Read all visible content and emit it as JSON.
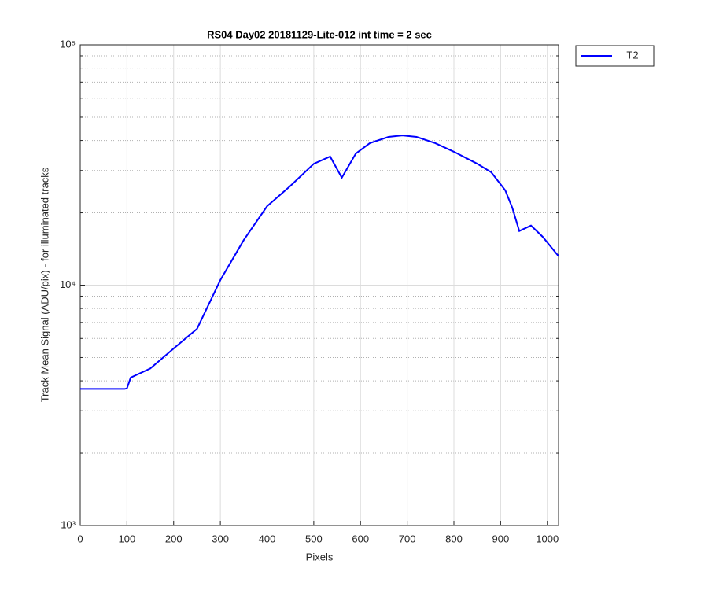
{
  "chart_data": {
    "type": "line",
    "title": "RS04 Day02 20181129-Lite-012 int time = 2 sec",
    "xlabel": "Pixels",
    "ylabel": "Track Mean Signal (ADU/pix) - for illuminated tracks",
    "x": [
      0,
      50,
      95,
      100,
      108,
      150,
      200,
      250,
      300,
      350,
      400,
      450,
      500,
      535,
      560,
      590,
      620,
      660,
      690,
      720,
      760,
      800,
      850,
      880,
      910,
      925,
      940,
      965,
      990,
      1024
    ],
    "series": [
      {
        "name": "T2",
        "color": "#0000ff",
        "values": [
          3700,
          3700,
          3700,
          3720,
          4125,
          4500,
          5450,
          6580,
          10500,
          15400,
          21300,
          25900,
          32000,
          34300,
          28000,
          35300,
          39000,
          41400,
          42000,
          41400,
          39000,
          35900,
          32000,
          29500,
          24800,
          21000,
          16800,
          17700,
          15900,
          13200
        ]
      }
    ],
    "xlim": [
      0,
      1024
    ],
    "xticks": [
      0,
      100,
      200,
      300,
      400,
      500,
      600,
      700,
      800,
      900,
      1000
    ],
    "ylim": [
      1000,
      100000
    ],
    "yticks": [
      {
        "value": 1000,
        "label": "10³"
      },
      {
        "value": 10000,
        "label": "10⁴"
      },
      {
        "value": 100000,
        "label": "10⁵"
      }
    ],
    "yscale": "log",
    "grid": true,
    "minor_grid": true,
    "legend": "outside-top-right"
  }
}
